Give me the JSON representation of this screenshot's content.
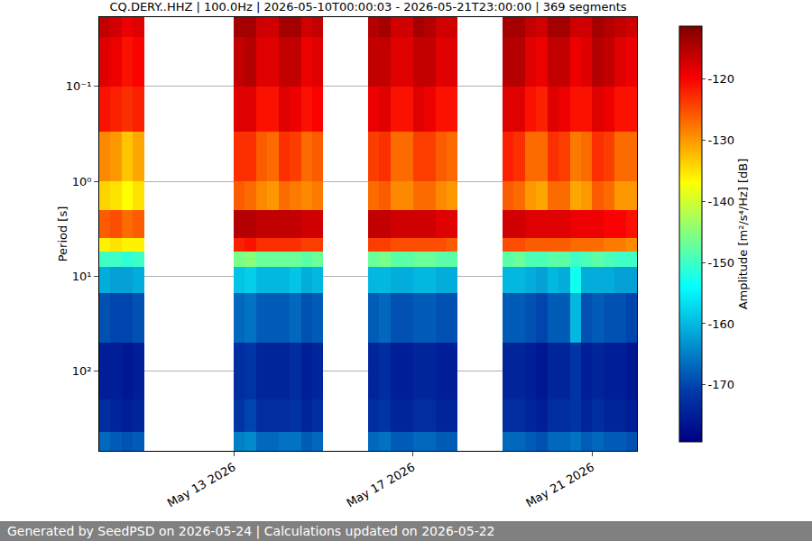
{
  "chart_data": {
    "type": "heatmap",
    "title": "CQ.DERY..HHZ | 100.0Hz | 2026-05-10T00:00:03 - 2026-05-21T23:00:00 | 369 segments",
    "y_label": "Period [s]",
    "colorbar_title": "Amplitude [m²/s⁴/Hz] [dB]",
    "color": "Jet",
    "log": "y",
    "grid": "y",
    "xlim": [
      "2026-05-10 00:00",
      "2026-05-22 00:00"
    ],
    "xticks": [
      {
        "value": "2026-05-13",
        "label": "May 13 2026"
      },
      {
        "value": "2026-05-17",
        "label": "May 17 2026"
      },
      {
        "value": "2026-05-21",
        "label": "May 21 2026"
      }
    ],
    "ylim": [
      690,
      0.0187
    ],
    "yticks": [
      {
        "value": 0.1,
        "label": "10⁻¹"
      },
      {
        "value": 1,
        "label": "10⁰"
      },
      {
        "value": 10,
        "label": "10¹"
      },
      {
        "value": 100,
        "label": "10²"
      }
    ],
    "zlim": [
      -179.3,
      -111.4
    ],
    "zticks": [
      -170,
      -160,
      -150,
      -140,
      -130,
      -120
    ],
    "x": [
      "2026-05-10 03:00",
      "2026-05-10 09:00",
      "2026-05-10 15:00",
      "2026-05-10 21:00",
      "2026-05-11 03:00",
      "2026-05-11 09:00",
      "2026-05-11 15:00",
      "2026-05-11 21:00",
      "2026-05-12 03:00",
      "2026-05-12 09:00",
      "2026-05-12 15:00",
      "2026-05-12 21:00",
      "2026-05-13 03:00",
      "2026-05-13 09:00",
      "2026-05-13 15:00",
      "2026-05-13 21:00",
      "2026-05-14 03:00",
      "2026-05-14 09:00",
      "2026-05-14 15:00",
      "2026-05-14 21:00",
      "2026-05-15 03:00",
      "2026-05-15 09:00",
      "2026-05-15 15:00",
      "2026-05-15 21:00",
      "2026-05-16 03:00",
      "2026-05-16 09:00",
      "2026-05-16 15:00",
      "2026-05-16 21:00",
      "2026-05-17 03:00",
      "2026-05-17 09:00",
      "2026-05-17 15:00",
      "2026-05-17 21:00",
      "2026-05-18 03:00",
      "2026-05-18 09:00",
      "2026-05-18 15:00",
      "2026-05-18 21:00",
      "2026-05-19 03:00",
      "2026-05-19 09:00",
      "2026-05-19 15:00",
      "2026-05-19 21:00",
      "2026-05-20 03:00",
      "2026-05-20 09:00",
      "2026-05-20 15:00",
      "2026-05-20 21:00",
      "2026-05-21 03:00",
      "2026-05-21 09:00",
      "2026-05-21 15:00",
      "2026-05-21 21:00"
    ],
    "y_edges": [
      0.0187,
      0.03,
      0.1,
      0.3,
      1,
      2,
      4,
      5.5,
      8,
      15,
      50,
      200,
      440,
      690
    ],
    "z": [
      [
        -116,
        -117,
        -119,
        -118,
        null,
        null,
        null,
        null,
        null,
        null,
        null,
        null,
        -114,
        -114,
        -117,
        -117,
        -114,
        -114,
        -117,
        -116,
        null,
        null,
        null,
        null,
        -115,
        -114,
        -117,
        -117,
        -114,
        -115,
        -117,
        -117,
        null,
        null,
        null,
        null,
        -114,
        -114,
        -116,
        -117,
        -114,
        -114,
        -117,
        -117,
        -114,
        -115,
        -116,
        -117
      ],
      [
        -118,
        -119,
        -121,
        -120,
        null,
        null,
        null,
        null,
        null,
        null,
        null,
        null,
        -116,
        -115,
        -118,
        -118,
        -116,
        -116,
        -119,
        -118,
        null,
        null,
        null,
        null,
        -116,
        -116,
        -118,
        -118,
        -116,
        -116,
        -118,
        -118,
        null,
        null,
        null,
        null,
        -115,
        -115,
        -118,
        -119,
        -116,
        -116,
        -119,
        -118,
        -115,
        -116,
        -118,
        -119
      ],
      [
        -121,
        -122,
        -123,
        -122,
        null,
        null,
        null,
        null,
        null,
        null,
        null,
        null,
        -118,
        -118,
        -121,
        -121,
        -118,
        -119,
        -121,
        -120,
        null,
        null,
        null,
        null,
        -119,
        -118,
        -121,
        -121,
        -118,
        -119,
        -121,
        -121,
        null,
        null,
        null,
        null,
        -118,
        -118,
        -121,
        -122,
        -118,
        -119,
        -121,
        -121,
        -118,
        -119,
        -121,
        -121
      ],
      [
        -129,
        -130,
        -133,
        -131,
        null,
        null,
        null,
        null,
        null,
        null,
        null,
        null,
        -123,
        -123,
        -126,
        -127,
        -123,
        -124,
        -127,
        -126,
        null,
        null,
        null,
        null,
        -124,
        -123,
        -127,
        -127,
        -124,
        -124,
        -126,
        -127,
        null,
        null,
        null,
        null,
        -122,
        -123,
        -127,
        -127,
        -123,
        -124,
        -128,
        -127,
        -123,
        -124,
        -127,
        -127
      ],
      [
        -134,
        -135,
        -137,
        -135,
        null,
        null,
        null,
        null,
        null,
        null,
        null,
        null,
        -126,
        -127,
        -129,
        -130,
        -127,
        -128,
        -129,
        -128,
        null,
        null,
        null,
        null,
        -127,
        -126,
        -129,
        -129,
        -127,
        -127,
        -129,
        -130,
        null,
        null,
        null,
        null,
        -126,
        -127,
        -130,
        -131,
        -127,
        -127,
        -131,
        -130,
        -126,
        -127,
        -130,
        -130
      ],
      [
        -126,
        -125,
        -127,
        -126,
        null,
        null,
        null,
        null,
        null,
        null,
        null,
        null,
        -115,
        -115,
        -116,
        -116,
        -116,
        -116,
        -117,
        -117,
        null,
        null,
        null,
        null,
        -116,
        -116,
        -117,
        -117,
        -117,
        -117,
        -118,
        -118,
        null,
        null,
        null,
        null,
        -117,
        -117,
        -118,
        -118,
        -118,
        -118,
        -119,
        -119,
        -119,
        -120,
        -120,
        -121
      ],
      [
        -136,
        -135,
        -136,
        -136,
        null,
        null,
        null,
        null,
        null,
        null,
        null,
        null,
        -122,
        -121,
        -123,
        -123,
        -123,
        -123,
        -124,
        -124,
        null,
        null,
        null,
        null,
        -124,
        -124,
        -125,
        -125,
        -125,
        -125,
        -125,
        -126,
        null,
        null,
        null,
        null,
        -125,
        -125,
        -126,
        -126,
        -126,
        -126,
        -127,
        -127,
        -127,
        -128,
        -128,
        -129
      ],
      [
        -150,
        -150,
        -151,
        -150,
        null,
        null,
        null,
        null,
        null,
        null,
        null,
        null,
        -146,
        -145,
        -147,
        -147,
        -147,
        -147,
        -148,
        -147,
        null,
        null,
        null,
        null,
        -147,
        -146,
        -148,
        -148,
        -147,
        -147,
        -148,
        -148,
        null,
        null,
        null,
        null,
        -148,
        -147,
        -149,
        -149,
        -148,
        -148,
        -150,
        -149,
        -148,
        -149,
        -150,
        -150
      ],
      [
        -161,
        -162,
        -162,
        -161,
        null,
        null,
        null,
        null,
        null,
        null,
        null,
        null,
        -159,
        -158,
        -160,
        -160,
        -160,
        -159,
        -161,
        -160,
        null,
        null,
        null,
        null,
        -160,
        -160,
        -161,
        -161,
        -160,
        -160,
        -161,
        -161,
        null,
        null,
        null,
        null,
        -160,
        -160,
        -161,
        -162,
        -160,
        -161,
        -153,
        -161,
        -161,
        -161,
        -162,
        -162
      ],
      [
        -169,
        -170,
        -170,
        -169,
        null,
        null,
        null,
        null,
        null,
        null,
        null,
        null,
        -167,
        -166,
        -168,
        -168,
        -168,
        -167,
        -169,
        -168,
        null,
        null,
        null,
        null,
        -168,
        -167,
        -169,
        -169,
        -168,
        -168,
        -169,
        -169,
        null,
        null,
        null,
        null,
        -168,
        -168,
        -169,
        -170,
        -168,
        -168,
        -160,
        -169,
        -168,
        -169,
        -169,
        -170
      ],
      [
        -175,
        -175,
        -176,
        -175,
        null,
        null,
        null,
        null,
        null,
        null,
        null,
        null,
        -173,
        -172,
        -174,
        -174,
        -174,
        -173,
        -175,
        -174,
        null,
        null,
        null,
        null,
        -174,
        -173,
        -175,
        -175,
        -174,
        -174,
        -175,
        -175,
        null,
        null,
        null,
        null,
        -174,
        -174,
        -175,
        -176,
        -174,
        -174,
        -172,
        -175,
        -174,
        -175,
        -175,
        -176
      ],
      [
        -173,
        -174,
        -175,
        -174,
        null,
        null,
        null,
        null,
        null,
        null,
        null,
        null,
        -172,
        -170,
        -173,
        -173,
        -173,
        -172,
        -174,
        -173,
        null,
        null,
        null,
        null,
        -173,
        -172,
        -174,
        -174,
        -173,
        -173,
        -174,
        -174,
        null,
        null,
        null,
        null,
        -173,
        -173,
        -174,
        -175,
        -173,
        -173,
        -172,
        -174,
        -173,
        -174,
        -174,
        -175
      ],
      [
        -167,
        -168,
        -169,
        -168,
        null,
        null,
        null,
        null,
        null,
        null,
        null,
        null,
        -165,
        -164,
        -167,
        -167,
        -166,
        -166,
        -168,
        -167,
        null,
        null,
        null,
        null,
        -167,
        -166,
        -168,
        -168,
        -167,
        -167,
        -168,
        -168,
        null,
        null,
        null,
        null,
        -167,
        -167,
        -168,
        -169,
        -167,
        -167,
        -166,
        -168,
        -167,
        -168,
        -168,
        -169
      ]
    ]
  },
  "footer": "Generated by SeedPSD on 2026-05-24 | Calculations updated on 2026-05-22"
}
